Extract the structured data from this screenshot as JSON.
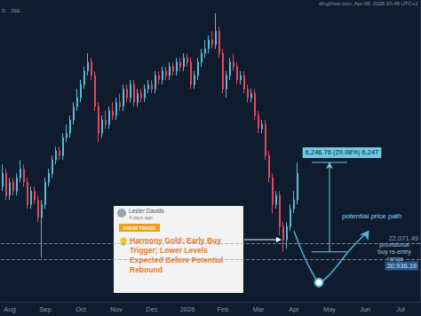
{
  "chart_data": {
    "type": "candlestick",
    "header": {
      "left": "D · JSE",
      "right": "dingView.com, Apr 06, 2026 20:48 UTC+2"
    },
    "categories": [
      null,
      null,
      "Aug",
      null,
      null,
      null,
      null,
      null,
      null,
      null,
      null,
      null,
      "Sep",
      null,
      null,
      null,
      null,
      null,
      null,
      null,
      null,
      null,
      "Oct",
      null,
      null,
      null,
      null,
      null,
      null,
      null,
      null,
      null,
      "Nov",
      null,
      null,
      null,
      null,
      null,
      null,
      null,
      null,
      null,
      "Dec",
      null,
      null,
      null,
      null,
      null,
      null,
      null,
      null,
      null,
      "2026",
      null,
      null,
      null,
      null,
      null,
      null,
      null,
      null,
      null,
      "Feb",
      null,
      null,
      null,
      null,
      null,
      null,
      null,
      null,
      null,
      "Mar",
      null,
      null,
      null,
      null,
      null,
      null,
      null,
      null,
      null,
      "Apr",
      null,
      null,
      null,
      null,
      null,
      null,
      null,
      null,
      null,
      "May",
      null,
      null,
      null,
      null,
      null,
      null,
      null,
      null,
      null,
      "Jun",
      null,
      null,
      null,
      null,
      null,
      null,
      null,
      null,
      null,
      "Jul",
      null,
      null,
      null,
      null,
      null
    ],
    "ohlc": [
      [
        26039,
        27589,
        25729,
        26969
      ],
      [
        26969,
        27279,
        25109,
        25419
      ],
      [
        25419,
        26659,
        25109,
        26349
      ],
      [
        26349,
        26659,
        25419,
        25729
      ],
      [
        25729,
        26969,
        25419,
        26659
      ],
      [
        26659,
        27899,
        26349,
        27279
      ],
      [
        27279,
        27589,
        26039,
        26349
      ],
      [
        26349,
        26659,
        24489,
        24799
      ],
      [
        24799,
        26039,
        24489,
        25729
      ],
      [
        25729,
        26039,
        24799,
        25109
      ],
      [
        25109,
        25419,
        23559,
        23869
      ],
      [
        23869,
        25109,
        21079,
        24799
      ],
      [
        24799,
        26659,
        24489,
        26349
      ],
      [
        26349,
        27279,
        26039,
        26969
      ],
      [
        26969,
        28209,
        26659,
        27899
      ],
      [
        27899,
        28829,
        27589,
        28519
      ],
      [
        28519,
        28829,
        27899,
        28209
      ],
      [
        28209,
        29759,
        27899,
        29449
      ],
      [
        29449,
        30379,
        29139,
        29759
      ],
      [
        29759,
        30999,
        29449,
        30689
      ],
      [
        30689,
        31929,
        30379,
        31619
      ],
      [
        31619,
        32859,
        31309,
        32239
      ],
      [
        32239,
        33479,
        31929,
        33169
      ],
      [
        33169,
        34409,
        32859,
        34099
      ],
      [
        34099,
        35339,
        33789,
        34719
      ],
      [
        34719,
        35029,
        33479,
        33789
      ],
      [
        33789,
        34099,
        31309,
        31619
      ],
      [
        31619,
        31929,
        29139,
        29759
      ],
      [
        29759,
        30999,
        29449,
        30689
      ],
      [
        30689,
        31309,
        30069,
        30379
      ],
      [
        30379,
        31619,
        30069,
        31309
      ],
      [
        31309,
        31929,
        30689,
        30999
      ],
      [
        30999,
        32239,
        30689,
        31929
      ],
      [
        31929,
        32549,
        31309,
        31619
      ],
      [
        31619,
        33169,
        31309,
        32859
      ],
      [
        32859,
        33169,
        31929,
        32239
      ],
      [
        32239,
        33479,
        31929,
        33169
      ],
      [
        33169,
        33479,
        31619,
        31929
      ],
      [
        31929,
        32859,
        31619,
        32549
      ],
      [
        32549,
        32859,
        31929,
        32239
      ],
      [
        32239,
        33169,
        31929,
        32859
      ],
      [
        32859,
        33479,
        32549,
        33169
      ],
      [
        33169,
        33479,
        32549,
        32859
      ],
      [
        32859,
        34099,
        32549,
        33789
      ],
      [
        33789,
        34099,
        33169,
        33479
      ],
      [
        33479,
        34409,
        33169,
        34099
      ],
      [
        34099,
        34409,
        33479,
        33789
      ],
      [
        33789,
        34719,
        33479,
        34409
      ],
      [
        34409,
        34719,
        33789,
        34099
      ],
      [
        34099,
        35029,
        33789,
        34719
      ],
      [
        34719,
        35029,
        34099,
        34409
      ],
      [
        34409,
        35339,
        34099,
        35029
      ],
      [
        35029,
        35339,
        34409,
        34719
      ],
      [
        34719,
        35029,
        32859,
        33169
      ],
      [
        33169,
        34099,
        32859,
        33789
      ],
      [
        33789,
        35029,
        33479,
        34719
      ],
      [
        34719,
        35649,
        34409,
        35339
      ],
      [
        35339,
        36269,
        35029,
        35649
      ],
      [
        35649,
        36579,
        35339,
        36269
      ],
      [
        36269,
        36889,
        35649,
        35959
      ],
      [
        35959,
        38129,
        35649,
        36889
      ],
      [
        36889,
        37199,
        35029,
        35339
      ],
      [
        35339,
        35649,
        32549,
        32859
      ],
      [
        32859,
        34099,
        32239,
        33789
      ],
      [
        33789,
        35029,
        33479,
        34719
      ],
      [
        34719,
        35339,
        34099,
        34409
      ],
      [
        34409,
        34719,
        33169,
        33479
      ],
      [
        33479,
        34099,
        33169,
        33789
      ],
      [
        33789,
        34099,
        32549,
        32859
      ],
      [
        32859,
        33169,
        31929,
        32239
      ],
      [
        32239,
        32859,
        31929,
        32549
      ],
      [
        32549,
        32859,
        30689,
        30999
      ],
      [
        30999,
        31309,
        29759,
        30069
      ],
      [
        30069,
        30689,
        29759,
        30379
      ],
      [
        30379,
        30689,
        27899,
        28209
      ],
      [
        28209,
        28519,
        26349,
        26659
      ],
      [
        26659,
        26969,
        24179,
        24799
      ],
      [
        24799,
        25729,
        24489,
        25419
      ],
      [
        25419,
        25729,
        22629,
        23249
      ],
      [
        23249,
        23559,
        21481.24,
        22319
      ],
      [
        22319,
        23559,
        21699,
        23249
      ],
      [
        23249,
        24799,
        22939,
        24489
      ],
      [
        24489,
        25729,
        24179,
        25109
      ],
      [
        25109,
        27728,
        24799,
        26969
      ],
      null,
      null,
      null,
      null,
      null,
      null,
      null,
      null,
      null,
      null,
      null,
      null,
      null,
      null,
      null,
      null,
      null,
      null,
      null,
      null,
      null,
      null,
      null,
      null,
      null,
      null,
      null,
      null,
      null,
      null,
      null,
      null,
      null,
      null
    ],
    "ylim": [
      18000,
      39000
    ],
    "yticks": [],
    "tick_labels": "x",
    "grid": false,
    "levels": [
      {
        "value": 22071.49,
        "label": "22,071.49"
      },
      {
        "value": 20936.19,
        "label": "20,936.19"
      }
    ],
    "range_label": "provisional buy re-entry range",
    "path": {
      "label": "potential price path",
      "values": [
        null,
        null,
        null,
        null,
        null,
        null,
        null,
        null,
        null,
        null,
        null,
        null,
        null,
        null,
        null,
        null,
        null,
        null,
        null,
        null,
        null,
        null,
        null,
        null,
        null,
        null,
        null,
        null,
        null,
        null,
        null,
        null,
        null,
        null,
        null,
        null,
        null,
        null,
        null,
        null,
        null,
        null,
        null,
        null,
        null,
        null,
        null,
        null,
        null,
        null,
        null,
        null,
        null,
        null,
        null,
        null,
        null,
        null,
        null,
        null,
        null,
        null,
        null,
        null,
        null,
        null,
        null,
        null,
        null,
        null,
        null,
        null,
        null,
        null,
        null,
        null,
        null,
        null,
        null,
        null,
        null,
        null,
        22939,
        null,
        null,
        21079,
        null,
        null,
        19650,
        19343,
        null,
        19650,
        null,
        null,
        20459,
        null,
        null,
        null,
        21699,
        null,
        null,
        null,
        null,
        22939,
        null,
        null,
        null,
        null,
        null,
        null,
        null,
        null,
        null,
        null,
        null,
        null,
        null,
        null
      ]
    },
    "measure": {
      "from": 21481.24,
      "to": 27728,
      "label": "6,246.76 (29.08%) 6,247"
    },
    "card": {
      "author": "Lester Davids",
      "time": "4 days ago",
      "tag": "UNUM TRADE",
      "title": "Harmony Gold: Early Buy Trigger; Lower Levels Expected Before Potential Rebound"
    }
  }
}
